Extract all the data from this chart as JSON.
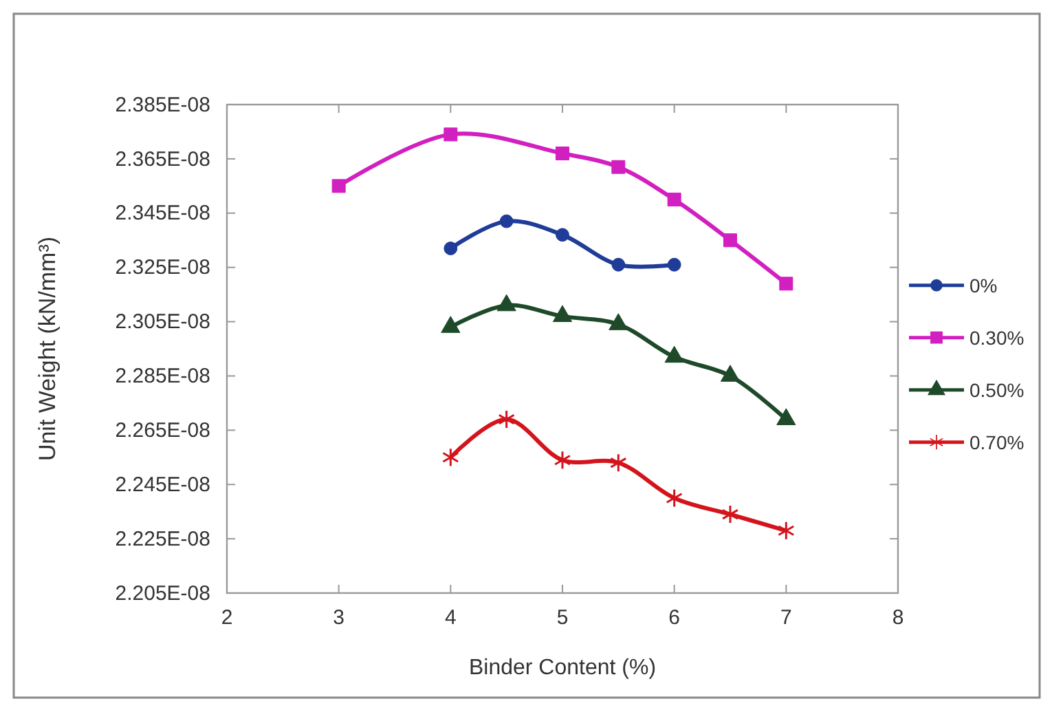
{
  "chart_data": {
    "type": "line",
    "xlabel": "Binder Content (%)",
    "ylabel": "Unit Weight (kN/mm³)",
    "xlim": [
      2,
      8
    ],
    "xticks": [
      2,
      3,
      4,
      5,
      6,
      7,
      8
    ],
    "ylim": [
      2.205e-08,
      2.385e-08
    ],
    "yticks": [
      {
        "value": 2.205e-08,
        "label": "2.205E-08"
      },
      {
        "value": 2.225e-08,
        "label": "2.225E-08"
      },
      {
        "value": 2.245e-08,
        "label": "2.245E-08"
      },
      {
        "value": 2.265e-08,
        "label": "2.265E-08"
      },
      {
        "value": 2.285e-08,
        "label": "2.285E-08"
      },
      {
        "value": 2.305e-08,
        "label": "2.305E-08"
      },
      {
        "value": 2.325e-08,
        "label": "2.325E-08"
      },
      {
        "value": 2.345e-08,
        "label": "2.345E-08"
      },
      {
        "value": 2.365e-08,
        "label": "2.365E-08"
      },
      {
        "value": 2.385e-08,
        "label": "2.385E-08"
      }
    ],
    "grid": false,
    "legend": "right",
    "series": [
      {
        "name": "0%",
        "color": "#1f3c99",
        "marker": "circle",
        "x": [
          4,
          4.5,
          5,
          5.5,
          6
        ],
        "values": [
          2.332e-08,
          2.342e-08,
          2.337e-08,
          2.326e-08,
          2.326e-08
        ]
      },
      {
        "name": "0.30%",
        "color": "#d21fbf",
        "marker": "square",
        "x": [
          3,
          4,
          5,
          5.5,
          6,
          6.5,
          7
        ],
        "values": [
          2.355e-08,
          2.374e-08,
          2.367e-08,
          2.362e-08,
          2.35e-08,
          2.335e-08,
          2.319e-08
        ]
      },
      {
        "name": "0.50%",
        "color": "#1e4a2a",
        "marker": "triangle",
        "x": [
          4,
          4.5,
          5,
          5.5,
          6,
          6.5,
          7
        ],
        "values": [
          2.303e-08,
          2.311e-08,
          2.307e-08,
          2.304e-08,
          2.292e-08,
          2.285e-08,
          2.269e-08
        ]
      },
      {
        "name": "0.70%",
        "color": "#d4141c",
        "marker": "cross",
        "x": [
          4,
          4.5,
          5,
          5.5,
          6,
          6.5,
          7
        ],
        "values": [
          2.255e-08,
          2.269e-08,
          2.254e-08,
          2.253e-08,
          2.24e-08,
          2.234e-08,
          2.228e-08
        ]
      }
    ]
  }
}
